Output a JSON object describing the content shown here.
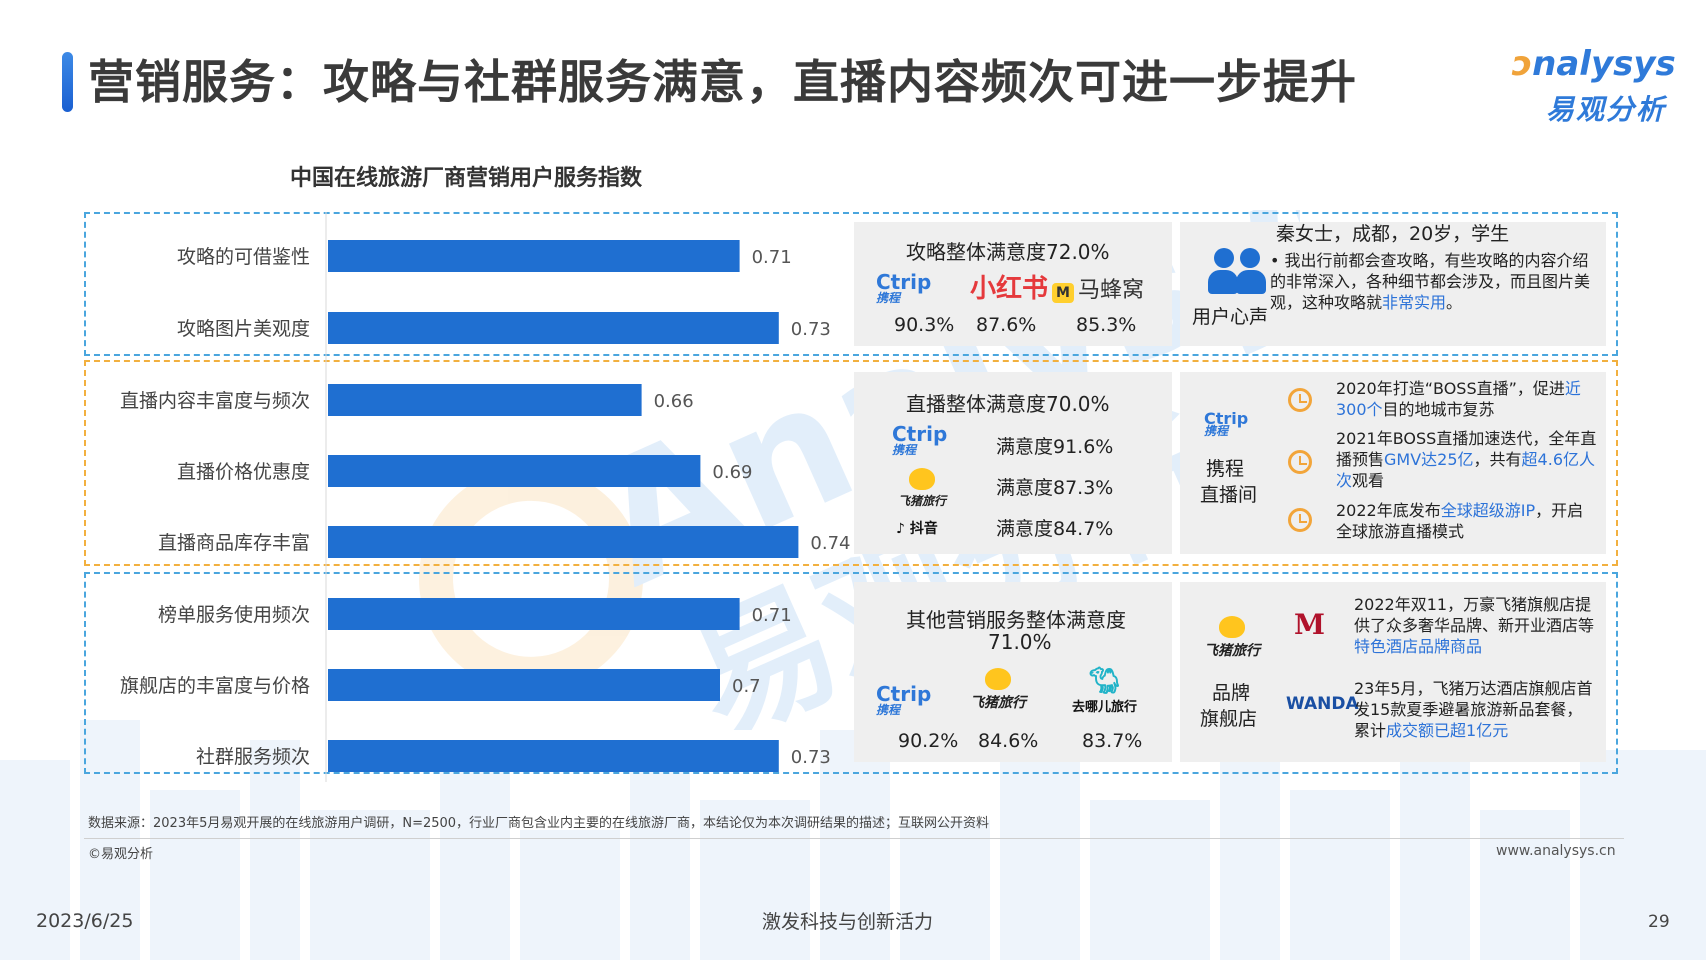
{
  "header": {
    "title": "营销服务：攻略与社群服务满意，直播内容频次可进一步提升",
    "logo_en_o": "ɔ",
    "logo_en_rest": "nalysys",
    "logo_cn": "易观分析"
  },
  "watermark": {
    "en": "Analysys",
    "cn": "易观分析"
  },
  "colors": {
    "bar": "#1f6fd1",
    "accent_blue": "#2d73d8",
    "accent_orange": "#f2a53a"
  },
  "chart_data": {
    "type": "bar",
    "orientation": "horizontal",
    "title": "中国在线旅游厂商营销用户服务指数",
    "categories": [
      "攻略的可借鉴性",
      "攻略图片美观度",
      "直播内容丰富度与频次",
      "直播价格优惠度",
      "直播商品库存丰富",
      "榜单服务使用频次",
      "旗舰店的丰富度与价格",
      "社群服务频次"
    ],
    "values": [
      0.71,
      0.73,
      0.66,
      0.69,
      0.74,
      0.71,
      0.7,
      0.73
    ],
    "labels": [
      "0.71",
      "0.73",
      "0.66",
      "0.69",
      "0.74",
      "0.71",
      "0.7",
      "0.73"
    ],
    "groups": [
      "攻略",
      "攻略",
      "直播",
      "直播",
      "直播",
      "其他",
      "其他",
      "其他"
    ],
    "xlim": [
      0.5,
      0.75
    ]
  },
  "guide_box": {
    "title": "攻略整体满意度72.0%",
    "logos": [
      {
        "name": "Ctrip",
        "cn": "携程",
        "pct": "90.3%"
      },
      {
        "name": "小红书",
        "pct": "87.6%"
      },
      {
        "name": "马蜂窝",
        "pct": "85.3%"
      }
    ]
  },
  "voice_box": {
    "label": "用户心声",
    "person": "秦女士，成都，20岁，学生",
    "quote_pre": "我出行前都会查攻略，有些攻略的内容介绍的非常深入，各种细节都会涉及，而且图片美观，这种攻略就",
    "quote_hl": "非常实用",
    "quote_post": "。"
  },
  "live_box": {
    "title": "直播整体满意度70.0%",
    "rows": [
      {
        "name": "Ctrip",
        "cn": "携程",
        "text": "满意度91.6%"
      },
      {
        "name": "飞猪旅行",
        "text": "满意度87.3%"
      },
      {
        "name": "抖音",
        "text": "满意度84.7%"
      }
    ]
  },
  "live_room_box": {
    "logo_name": "Ctrip",
    "logo_cn": "携程",
    "label_l1": "携程",
    "label_l2": "直播间",
    "events": [
      {
        "pre": "2020年打造“BOSS直播”，促进",
        "hl": "近300个",
        "post": "目的地城市复苏"
      },
      {
        "pre": "2021年BOSS直播加速迭代，全年直播预售",
        "hl": "GMV达25亿",
        "mid": "，共有",
        "hl2": "超4.6亿人次",
        "post": "观看"
      },
      {
        "pre": "2022年底发布",
        "hl": "全球超级游IP",
        "post": "，开启全球旅游直播模式"
      }
    ]
  },
  "other_box": {
    "title_l1": "其他营销服务整体满意度",
    "title_l2": "71.0%",
    "logos": [
      {
        "name": "Ctrip",
        "cn": "携程",
        "pct": "90.2%"
      },
      {
        "name": "飞猪旅行",
        "pct": "84.6%"
      },
      {
        "name": "去哪儿旅行",
        "pct": "83.7%"
      }
    ]
  },
  "store_box": {
    "logo_name": "飞猪旅行",
    "label_l1": "品牌",
    "label_l2": "旗舰店",
    "marriott": "M",
    "wanda": "WANDA",
    "items": [
      {
        "pre": "2022年双11，万豪飞猪旗舰店提供了众多奢华品牌、新开业酒店等",
        "hl": "特色酒店品牌商品",
        "post": ""
      },
      {
        "pre": "23年5月，飞猪万达酒店旗舰店首发15款夏季避暑旅游新品套餐，累计",
        "hl": "成交额已超1亿元",
        "post": ""
      }
    ]
  },
  "footer": {
    "source": "数据来源：2023年5月易观开展的在线旅游用户调研，N=2500，行业厂商包含业内主要的在线旅游厂商，本结论仅为本次调研结果的描述；互联网公开资料",
    "copyright": "©易观分析",
    "site": "www.analysys.cn",
    "date": "2023/6/25",
    "slogan": "激发科技与创新活力",
    "page": "29"
  }
}
